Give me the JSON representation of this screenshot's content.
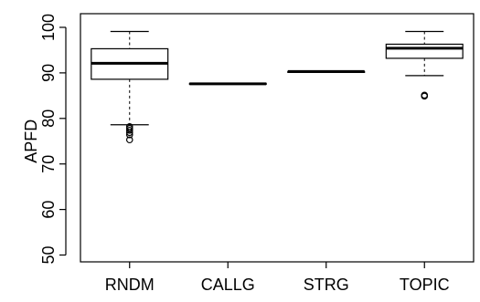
{
  "chart_data": {
    "type": "box",
    "title": "",
    "xlabel": "",
    "ylabel": "APFD",
    "ylim": [
      48.5,
      103
    ],
    "yticks": [
      50,
      60,
      70,
      80,
      90,
      100
    ],
    "categories": [
      "RNDM",
      "CALLG",
      "STRG",
      "TOPIC"
    ],
    "boxes": [
      {
        "name": "RNDM",
        "whisker_low": 78.6,
        "q1": 88.6,
        "median": 92.1,
        "q3": 95.3,
        "whisker_high": 99.1,
        "outliers": [
          78.2,
          77.8,
          77.4,
          76.9,
          76.4,
          75.3
        ]
      },
      {
        "name": "CALLG",
        "whisker_low": 87.6,
        "q1": 87.6,
        "median": 87.6,
        "q3": 87.7,
        "whisker_high": 87.7,
        "outliers": []
      },
      {
        "name": "STRG",
        "whisker_low": 90.3,
        "q1": 90.3,
        "median": 90.3,
        "q3": 90.3,
        "whisker_high": 90.3,
        "outliers": []
      },
      {
        "name": "TOPIC",
        "whisker_low": 89.4,
        "q1": 93.2,
        "median": 95.4,
        "q3": 96.3,
        "whisker_high": 99.1,
        "outliers": [
          85.1,
          84.9
        ]
      }
    ],
    "grid": false,
    "legend": "none"
  }
}
